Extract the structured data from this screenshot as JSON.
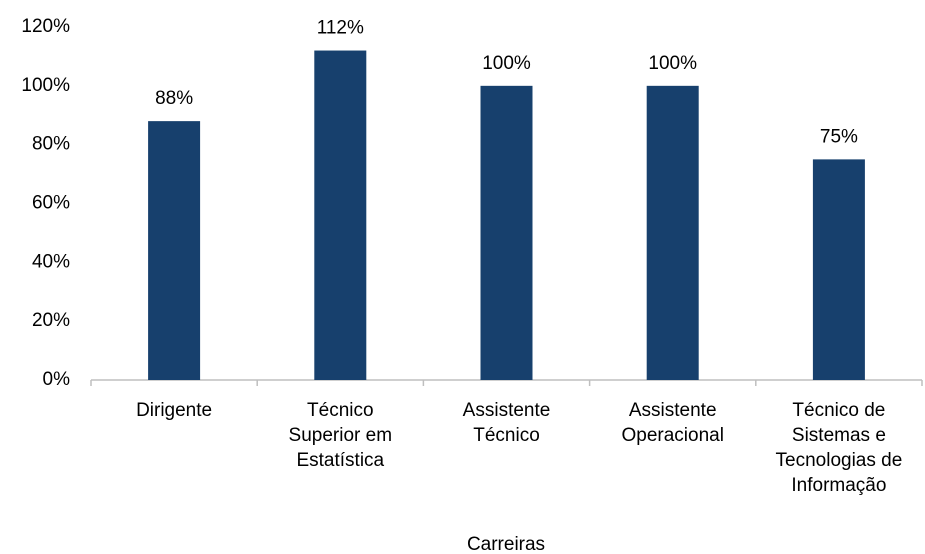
{
  "chart_data": {
    "type": "bar",
    "x_label": "Carreiras",
    "categories": [
      "Dirigente",
      "Técnico\nSuperior em\nEstatística",
      "Assistente\nTécnico",
      "Assistente\nOperacional",
      "Técnico de\nSistemas e\nTecnologias de\nInformação"
    ],
    "values": [
      88,
      112,
      100,
      100,
      75
    ],
    "value_labels": [
      "88%",
      "112%",
      "100%",
      "100%",
      "75%"
    ],
    "color": "#17406d",
    "ylim": [
      0,
      120
    ],
    "yticks": [
      {
        "value": 0,
        "label": "0%"
      },
      {
        "value": 20,
        "label": "20%"
      },
      {
        "value": 40,
        "label": "40%"
      },
      {
        "value": 60,
        "label": "60%"
      },
      {
        "value": 80,
        "label": "80%"
      },
      {
        "value": 100,
        "label": "100%"
      },
      {
        "value": 120,
        "label": "120%"
      }
    ],
    "grid": false
  }
}
